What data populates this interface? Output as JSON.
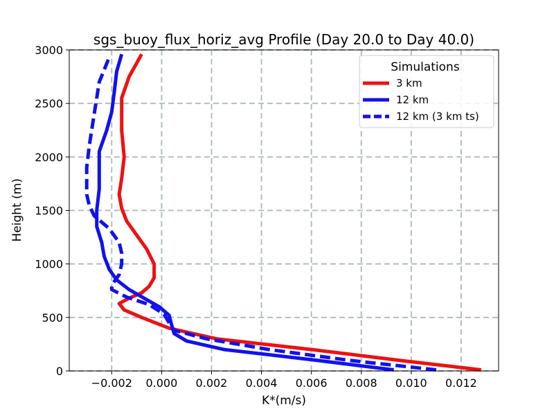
{
  "chart_data": {
    "type": "line",
    "title": "sgs_buoy_flux_horiz_avg Profile (Day 20.0 to Day 40.0)",
    "xlabel": "K*(m/s)",
    "ylabel": "Height (m)",
    "xlim": [
      -0.0037,
      0.0135
    ],
    "ylim": [
      0,
      3000
    ],
    "xticks": [
      -0.002,
      0.0,
      0.002,
      0.004,
      0.006,
      0.008,
      0.01,
      0.012
    ],
    "xtick_labels": [
      "−0.002",
      "0.000",
      "0.002",
      "0.004",
      "0.006",
      "0.008",
      "0.010",
      "0.012"
    ],
    "yticks": [
      0,
      500,
      1000,
      1500,
      2000,
      2500,
      3000
    ],
    "ytick_labels": [
      "0",
      "500",
      "1000",
      "1500",
      "2000",
      "2500",
      "3000"
    ],
    "grid": true,
    "legend": {
      "title": "Simulations",
      "position": "top-right"
    },
    "series": [
      {
        "name": "3 km",
        "color": "#ee1111",
        "style": "solid",
        "points": [
          [
            0.0128,
            10
          ],
          [
            0.0095,
            100
          ],
          [
            0.006,
            200
          ],
          [
            0.0022,
            300
          ],
          [
            0.0003,
            400
          ],
          [
            -0.0008,
            500
          ],
          [
            -0.0015,
            570
          ],
          [
            -0.0017,
            630
          ],
          [
            -0.0013,
            680
          ],
          [
            -0.0008,
            730
          ],
          [
            -0.0005,
            790
          ],
          [
            -0.0003,
            870
          ],
          [
            -0.0003,
            1000
          ],
          [
            -0.0006,
            1140
          ],
          [
            -0.001,
            1270
          ],
          [
            -0.0014,
            1400
          ],
          [
            -0.0016,
            1520
          ],
          [
            -0.0017,
            1650
          ],
          [
            -0.0016,
            1800
          ],
          [
            -0.0015,
            2000
          ],
          [
            -0.0016,
            2250
          ],
          [
            -0.0016,
            2550
          ],
          [
            -0.0013,
            2750
          ],
          [
            -0.0008,
            2960
          ]
        ]
      },
      {
        "name": "12 km",
        "color": "#1111ee",
        "style": "solid",
        "points": [
          [
            0.0093,
            10
          ],
          [
            0.0062,
            100
          ],
          [
            0.0025,
            200
          ],
          [
            0.001,
            280
          ],
          [
            0.0005,
            350
          ],
          [
            0.0004,
            430
          ],
          [
            0.0003,
            520
          ],
          [
            -0.0001,
            600
          ],
          [
            -0.0007,
            680
          ],
          [
            -0.0013,
            760
          ],
          [
            -0.0018,
            850
          ],
          [
            -0.0021,
            950
          ],
          [
            -0.0023,
            1070
          ],
          [
            -0.0024,
            1200
          ],
          [
            -0.0026,
            1350
          ],
          [
            -0.0026,
            1500
          ],
          [
            -0.0025,
            1700
          ],
          [
            -0.0025,
            1900
          ],
          [
            -0.0025,
            2050
          ],
          [
            -0.0022,
            2250
          ],
          [
            -0.002,
            2420
          ],
          [
            -0.0019,
            2600
          ],
          [
            -0.0018,
            2800
          ],
          [
            -0.0016,
            2960
          ]
        ]
      },
      {
        "name": "12 km (3 km ts)",
        "color": "#1111ee",
        "style": "dashed",
        "points": [
          [
            0.011,
            10
          ],
          [
            0.0075,
            100
          ],
          [
            0.0043,
            200
          ],
          [
            0.0018,
            300
          ],
          [
            0.0005,
            380
          ],
          [
            0.0003,
            450
          ],
          [
            0.0001,
            530
          ],
          [
            -0.0005,
            620
          ],
          [
            -0.0014,
            690
          ],
          [
            -0.002,
            760
          ],
          [
            -0.002,
            800
          ],
          [
            -0.0017,
            900
          ],
          [
            -0.0016,
            1000
          ],
          [
            -0.0016,
            1100
          ],
          [
            -0.0017,
            1200
          ],
          [
            -0.0021,
            1330
          ],
          [
            -0.0027,
            1450
          ],
          [
            -0.0029,
            1550
          ],
          [
            -0.003,
            1650
          ],
          [
            -0.003,
            1900
          ],
          [
            -0.0029,
            2100
          ],
          [
            -0.0027,
            2400
          ],
          [
            -0.0025,
            2700
          ],
          [
            -0.0021,
            2930
          ]
        ]
      }
    ]
  }
}
